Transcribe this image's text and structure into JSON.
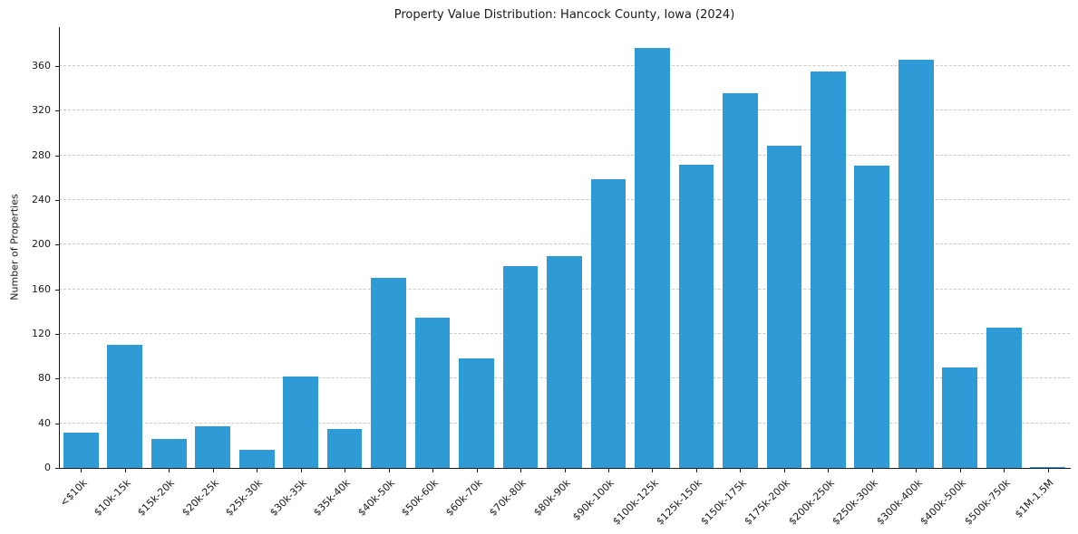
{
  "chart_data": {
    "type": "bar",
    "title": "Property Value Distribution: Hancock County, Iowa (2024)",
    "xlabel": "",
    "ylabel": "Number of Properties",
    "categories": [
      "<$10k",
      "$10k-15k",
      "$15k-20k",
      "$20k-25k",
      "$25k-30k",
      "$30k-35k",
      "$35k-40k",
      "$40k-50k",
      "$50k-60k",
      "$60k-70k",
      "$70k-80k",
      "$80k-90k",
      "$90k-100k",
      "$100k-125k",
      "$125k-150k",
      "$150k-175k",
      "$175k-200k",
      "$200k-250k",
      "$250k-300k",
      "$300k-400k",
      "$400k-500k",
      "$500k-750k",
      "$1M-1.5M"
    ],
    "values": [
      32,
      110,
      26,
      37,
      16,
      82,
      35,
      170,
      135,
      98,
      181,
      190,
      259,
      376,
      272,
      336,
      289,
      355,
      271,
      366,
      90,
      126,
      1
    ],
    "ylim": [
      0,
      395
    ],
    "yticks": [
      0,
      40,
      80,
      120,
      160,
      200,
      240,
      280,
      320,
      360
    ],
    "bar_color": "#2e9bd6",
    "grid": "horizontal-dashed",
    "legend": "none"
  }
}
